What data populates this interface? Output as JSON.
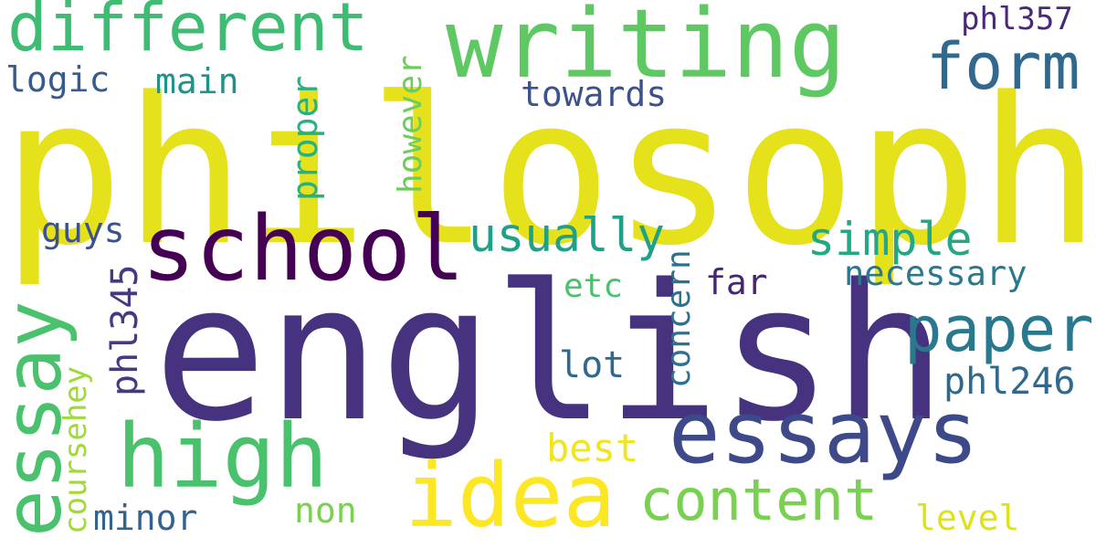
{
  "words": [
    {
      "key": "philosophy",
      "text": "philosophy",
      "color": "#e5e11a"
    },
    {
      "key": "english",
      "text": "english",
      "color": "#46327e"
    },
    {
      "key": "writing",
      "text": "writing",
      "color": "#5ec962"
    },
    {
      "key": "school",
      "text": "school",
      "color": "#440154"
    },
    {
      "key": "essay",
      "text": "essay",
      "color": "#4ac16d"
    },
    {
      "key": "essays",
      "text": "essays",
      "color": "#3e4989"
    },
    {
      "key": "high",
      "text": "high",
      "color": "#4ac16d"
    },
    {
      "key": "idea",
      "text": "idea",
      "color": "#fde725"
    },
    {
      "key": "different",
      "text": "different",
      "color": "#3fbc73"
    },
    {
      "key": "form",
      "text": "form",
      "color": "#31688e"
    },
    {
      "key": "paper",
      "text": "paper",
      "color": "#2a788e"
    },
    {
      "key": "content",
      "text": "content",
      "color": "#7ad151"
    },
    {
      "key": "usually",
      "text": "usually",
      "color": "#1fa188"
    },
    {
      "key": "simple",
      "text": "simple",
      "color": "#22a884"
    },
    {
      "key": "necessary",
      "text": "necessary",
      "color": "#2a788e"
    },
    {
      "key": "phl246",
      "text": "phl246",
      "color": "#31688e"
    },
    {
      "key": "phl357",
      "text": "phl357",
      "color": "#482878"
    },
    {
      "key": "phl345",
      "text": "phl345",
      "color": "#443983"
    },
    {
      "key": "logic",
      "text": "logic",
      "color": "#365c8d"
    },
    {
      "key": "main",
      "text": "main",
      "color": "#21918c"
    },
    {
      "key": "towards",
      "text": "towards",
      "color": "#3b528b"
    },
    {
      "key": "proper",
      "text": "proper",
      "color": "#2ab07f"
    },
    {
      "key": "however",
      "text": "however",
      "color": "#6ccd5a"
    },
    {
      "key": "guys",
      "text": "guys",
      "color": "#3b528b"
    },
    {
      "key": "concern",
      "text": "concern",
      "color": "#2c728e"
    },
    {
      "key": "etc",
      "text": "etc",
      "color": "#4ac16d"
    },
    {
      "key": "far",
      "text": "far",
      "color": "#482475"
    },
    {
      "key": "lot",
      "text": "lot",
      "color": "#31688e"
    },
    {
      "key": "best",
      "text": "best",
      "color": "#f1e51d"
    },
    {
      "key": "coursehey",
      "text": "coursehey",
      "color": "#a0da39"
    },
    {
      "key": "minor",
      "text": "minor",
      "color": "#33638d"
    },
    {
      "key": "non",
      "text": "non",
      "color": "#7ad151"
    },
    {
      "key": "level",
      "text": "level",
      "color": "#dde318"
    }
  ]
}
